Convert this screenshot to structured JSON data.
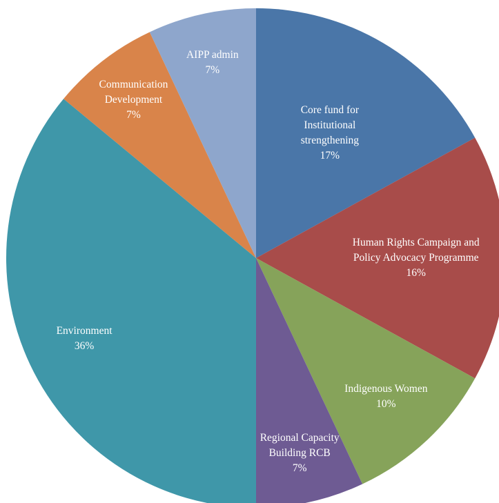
{
  "chart_data": {
    "type": "pie",
    "categories": [
      "Core fund for Institutional strengthening",
      "Human Rights Campaign and Policy Advocacy Programme",
      "Indigenous Women",
      "Regional Capacity Building RCB",
      "Environment",
      "Communication Development",
      "AIPP admin"
    ],
    "values": [
      17,
      16,
      10,
      7,
      36,
      7,
      7
    ],
    "value_labels": [
      "17%",
      "16%",
      "10%",
      "7%",
      "36%",
      "7%",
      "7%"
    ],
    "colors": [
      "#4a76a8",
      "#a84c4a",
      "#86a35a",
      "#6e5b93",
      "#3f97a9",
      "#d9844a",
      "#8ea6cc"
    ]
  }
}
